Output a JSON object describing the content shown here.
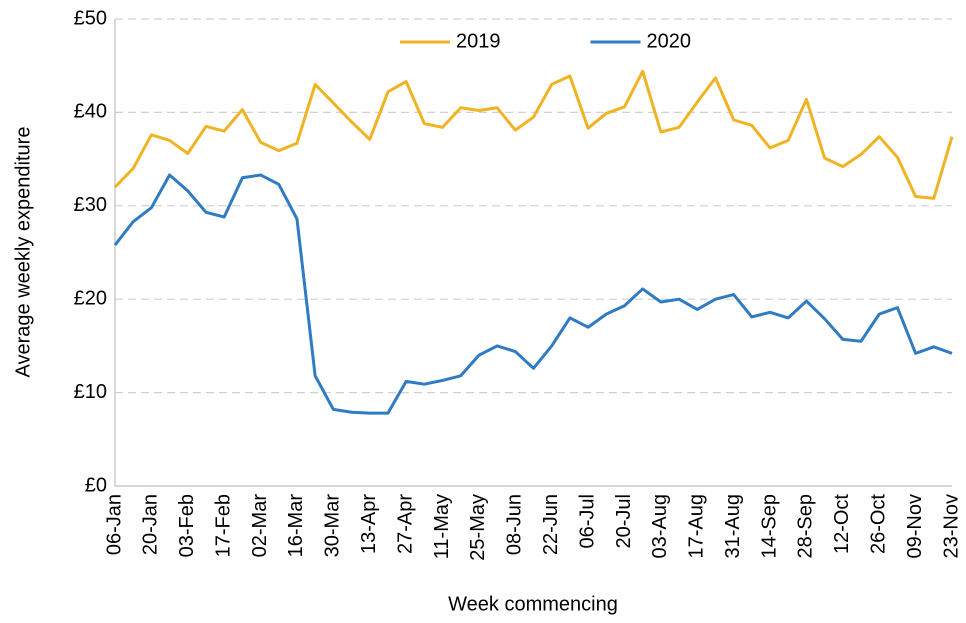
{
  "chart_data": {
    "type": "line",
    "y_label": "Average weekly expenditure",
    "x_label": "Week commencing",
    "categories": [
      "06-Jan",
      null,
      "20-Jan",
      null,
      "03-Feb",
      null,
      "17-Feb",
      null,
      "02-Mar",
      null,
      "16-Mar",
      null,
      "30-Mar",
      null,
      "13-Apr",
      null,
      "27-Apr",
      null,
      "11-May",
      null,
      "25-May",
      null,
      "08-Jun",
      null,
      "22-Jun",
      null,
      "06-Jul",
      null,
      "20-Jul",
      null,
      "03-Aug",
      null,
      "17-Aug",
      null,
      "31-Aug",
      null,
      "14-Sep",
      null,
      "28-Sep",
      null,
      "12-Oct",
      null,
      "26-Oct",
      null,
      "09-Nov",
      null,
      "23-Nov"
    ],
    "series": [
      {
        "name": "2019",
        "color": "#f0b323",
        "values": [
          32,
          34,
          37.6,
          37,
          35.6,
          38.5,
          38,
          40.3,
          36.8,
          35.9,
          36.7,
          43,
          41,
          39,
          37.1,
          42.2,
          43.3,
          38.8,
          38.4,
          40.5,
          40.2,
          40.5,
          38.1,
          39.5,
          43,
          43.9,
          38.3,
          39.9,
          40.6,
          44.4,
          37.9,
          38.4,
          41.1,
          43.7,
          39.2,
          38.6,
          36.2,
          37,
          41.4,
          35.1,
          34.2,
          35.5,
          37.4,
          35.2,
          31,
          30.8,
          37.4
        ]
      },
      {
        "name": "2020",
        "color": "#2f7bc4",
        "values": [
          25.8,
          28.3,
          29.8,
          33.3,
          31.6,
          29.3,
          28.8,
          33,
          33.3,
          32.3,
          28.6,
          11.8,
          8.2,
          7.9,
          7.8,
          7.8,
          11.2,
          10.9,
          11.3,
          11.8,
          14,
          15,
          14.4,
          12.6,
          15,
          18,
          17,
          18.4,
          19.3,
          21.1,
          19.7,
          20,
          18.9,
          20,
          20.5,
          18.1,
          18.6,
          18,
          19.8,
          17.9,
          15.7,
          15.5,
          18.4,
          19.1,
          14.2,
          14.9,
          14.2
        ]
      }
    ],
    "ylim": [
      0,
      50
    ],
    "yticks": [
      {
        "value": 0,
        "label": "£0"
      },
      {
        "value": 10,
        "label": "£10"
      },
      {
        "value": 20,
        "label": "£20"
      },
      {
        "value": 30,
        "label": "£30"
      },
      {
        "value": 40,
        "label": "£40"
      },
      {
        "value": 50,
        "label": "£50"
      }
    ],
    "grid": true,
    "legend": "top"
  }
}
